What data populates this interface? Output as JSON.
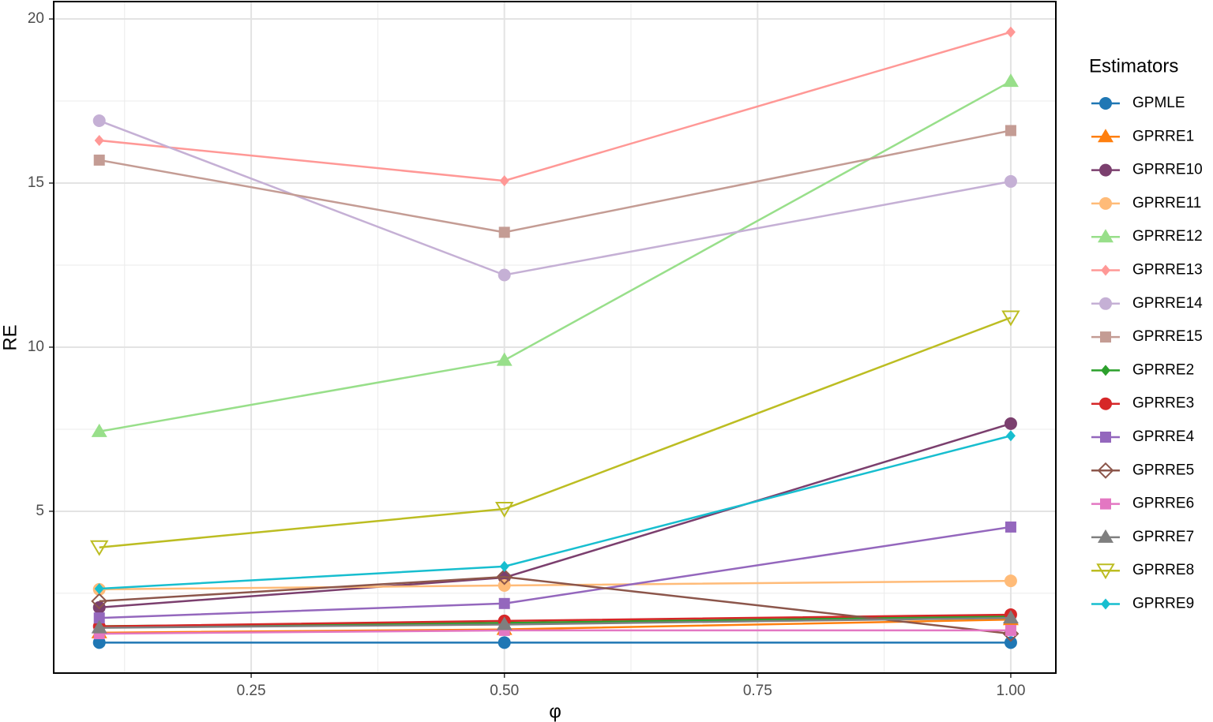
{
  "chart_data": {
    "type": "line",
    "x_label": "φ",
    "y_label": "RE",
    "legend_title": "Estimators",
    "x": [
      0.1,
      0.5,
      1.0
    ],
    "xlim": [
      0.055,
      1.0445
    ],
    "ylim": [
      0.07,
      20.53
    ],
    "xticks": [
      {
        "value": 0.25,
        "label": "0.25"
      },
      {
        "value": 0.5,
        "label": "0.50"
      },
      {
        "value": 0.75,
        "label": "0.75"
      },
      {
        "value": 1.0,
        "label": "1.00"
      }
    ],
    "yticks": [
      5,
      10,
      15,
      20
    ],
    "x_minor_grid": [
      0.125,
      0.375,
      0.625,
      0.875
    ],
    "y_minor_grid": [
      2.5,
      7.5,
      12.5,
      17.5
    ],
    "grid": true,
    "legend": "right",
    "series": [
      {
        "name": "GPMLE",
        "color": "#1f77b4",
        "shape": "circle",
        "values": [
          1.0,
          1.0,
          1.0
        ]
      },
      {
        "name": "GPRRE1",
        "color": "#ff7f0e",
        "shape": "triangle",
        "values": [
          1.3,
          1.4,
          1.7
        ]
      },
      {
        "name": "GPRRE10",
        "color": "#7b3f6e",
        "shape": "circle",
        "values": [
          2.07,
          2.98,
          7.67
        ]
      },
      {
        "name": "GPRRE11",
        "color": "#ffbb78",
        "shape": "circle",
        "values": [
          2.62,
          2.74,
          2.88
        ]
      },
      {
        "name": "GPRRE12",
        "color": "#98df8a",
        "shape": "triangle",
        "values": [
          7.43,
          9.6,
          18.1
        ]
      },
      {
        "name": "GPRRE13",
        "color": "#ff9896",
        "shape": "diamond",
        "values": [
          16.3,
          15.07,
          19.6
        ]
      },
      {
        "name": "GPRRE14",
        "color": "#c5b0d5",
        "shape": "circle",
        "values": [
          16.9,
          12.2,
          15.05
        ]
      },
      {
        "name": "GPRRE15",
        "color": "#c49c94",
        "shape": "square",
        "values": [
          15.7,
          13.5,
          16.6
        ]
      },
      {
        "name": "GPRRE2",
        "color": "#2ca02c",
        "shape": "diamond",
        "values": [
          1.5,
          1.6,
          1.8
        ]
      },
      {
        "name": "GPRRE3",
        "color": "#d62728",
        "shape": "circle",
        "values": [
          1.49,
          1.66,
          1.85
        ]
      },
      {
        "name": "GPRRE4",
        "color": "#9467bd",
        "shape": "square",
        "values": [
          1.75,
          2.19,
          4.52
        ]
      },
      {
        "name": "GPRRE5",
        "color": "#8c564b",
        "shape": "open-diamond",
        "values": [
          2.26,
          3.0,
          1.27
        ]
      },
      {
        "name": "GPRRE6",
        "color": "#e377c2",
        "shape": "square",
        "values": [
          1.27,
          1.37,
          1.37
        ]
      },
      {
        "name": "GPRRE7",
        "color": "#7f7f7f",
        "shape": "triangle",
        "values": [
          1.45,
          1.55,
          1.75
        ]
      },
      {
        "name": "GPRRE8",
        "color": "#bcbd22",
        "shape": "open-down-triangle",
        "values": [
          3.9,
          5.07,
          10.9
        ]
      },
      {
        "name": "GPRRE9",
        "color": "#17becf",
        "shape": "diamond",
        "values": [
          2.64,
          3.32,
          7.3
        ]
      }
    ]
  }
}
